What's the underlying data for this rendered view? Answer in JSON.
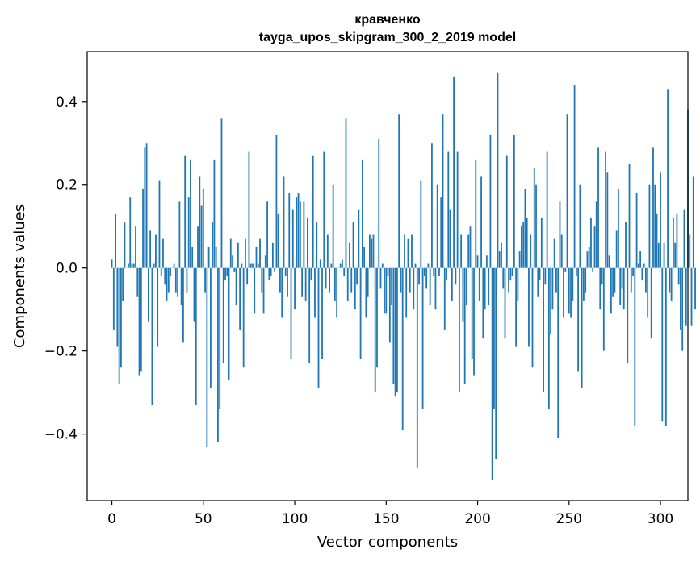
{
  "chart_data": {
    "type": "bar",
    "title": "кравченко",
    "subtitle": "tayga_upos_skipgram_300_2_2019 model",
    "xlabel": "Vector components",
    "ylabel": "Components values",
    "xlim": [
      -13.5,
      315
    ],
    "ylim": [
      -0.56,
      0.52
    ],
    "xticks": [
      0,
      50,
      100,
      150,
      200,
      250,
      300
    ],
    "xtick_labels": [
      "0",
      "50",
      "100",
      "150",
      "200",
      "250",
      "300"
    ],
    "yticks": [
      -0.4,
      -0.2,
      0.0,
      0.2,
      0.4
    ],
    "ytick_labels": [
      "−0.4",
      "−0.2",
      "0.0",
      "0.2",
      "0.4"
    ],
    "bar_color": "#1f77b4",
    "grid": false,
    "x_start": 0,
    "values": [
      0.02,
      -0.15,
      0.13,
      -0.19,
      -0.28,
      -0.24,
      -0.08,
      0.11,
      0.0,
      0.01,
      0.17,
      0.01,
      0.01,
      0.1,
      -0.07,
      -0.26,
      -0.25,
      0.19,
      0.29,
      0.3,
      -0.13,
      0.09,
      -0.33,
      0.01,
      0.08,
      -0.19,
      0.21,
      -0.02,
      0.07,
      -0.04,
      -0.08,
      -0.06,
      -0.02,
      0.0,
      0.01,
      -0.06,
      -0.07,
      0.16,
      -0.09,
      -0.18,
      0.27,
      -0.06,
      0.17,
      0.26,
      0.05,
      -0.13,
      -0.33,
      0.1,
      0.22,
      0.15,
      0.19,
      -0.06,
      -0.43,
      0.05,
      -0.29,
      0.11,
      0.26,
      0.05,
      -0.42,
      -0.34,
      0.36,
      -0.23,
      -0.03,
      -0.02,
      -0.27,
      0.07,
      0.03,
      -0.01,
      -0.09,
      0.06,
      -0.15,
      0.01,
      -0.24,
      0.07,
      -0.04,
      0.28,
      0.01,
      0.01,
      -0.11,
      0.05,
      0.01,
      0.07,
      -0.06,
      -0.11,
      0.03,
      0.16,
      -0.03,
      -0.02,
      0.06,
      -0.01,
      0.32,
      0.13,
      -0.06,
      -0.12,
      0.22,
      -0.02,
      -0.07,
      0.18,
      -0.22,
      0.14,
      -0.1,
      0.17,
      0.18,
      0.16,
      -0.07,
      0.16,
      -0.08,
      0.12,
      -0.23,
      -0.03,
      0.27,
      -0.12,
      0.11,
      -0.29,
      0.02,
      -0.22,
      0.28,
      -0.05,
      0.08,
      -0.06,
      0.01,
      0.2,
      -0.08,
      -0.12,
      0.0,
      0.01,
      0.02,
      -0.02,
      0.36,
      -0.08,
      0.06,
      -0.06,
      0.11,
      -0.1,
      -0.04,
      0.14,
      -0.22,
      0.26,
      0.05,
      -0.12,
      -0.07,
      0.08,
      0.07,
      0.08,
      -0.3,
      -0.24,
      0.31,
      -0.05,
      0.01,
      -0.11,
      -0.11,
      -0.02,
      -0.18,
      -0.09,
      -0.28,
      -0.31,
      -0.3,
      0.37,
      -0.06,
      -0.39,
      0.08,
      -0.12,
      0.07,
      -0.06,
      0.08,
      -0.1,
      0.01,
      -0.48,
      -0.04,
      0.21,
      -0.34,
      -0.02,
      -0.05,
      0.01,
      -0.09,
      0.3,
      -0.02,
      -0.1,
      0.2,
      -0.02,
      0.17,
      0.37,
      -0.15,
      -0.03,
      0.28,
      0.14,
      -0.08,
      0.46,
      -0.04,
      0.28,
      -0.3,
      0.08,
      -0.13,
      -0.28,
      -0.09,
      0.08,
      0.1,
      -0.22,
      -0.26,
      0.26,
      0.03,
      -0.08,
      0.22,
      -0.17,
      -0.1,
      0.03,
      -0.09,
      0.32,
      -0.51,
      -0.34,
      -0.46,
      0.47,
      0.04,
      0.06,
      -0.05,
      -0.17,
      0.27,
      -0.06,
      -0.03,
      -0.02,
      0.32,
      -0.19,
      -0.08,
      0.04,
      0.1,
      0.11,
      0.19,
      0.12,
      -0.19,
      0.08,
      -0.24,
      0.24,
      0.2,
      -0.07,
      -0.03,
      0.12,
      -0.3,
      -0.04,
      0.28,
      -0.34,
      -0.16,
      -0.1,
      0.07,
      -0.06,
      -0.41,
      0.16,
      0.08,
      -0.12,
      -0.01,
      0.37,
      -0.11,
      -0.12,
      -0.08,
      0.44,
      -0.02,
      -0.25,
      0.2,
      -0.29,
      -0.08,
      -0.06,
      0.04,
      0.05,
      0.12,
      -0.01,
      0.1,
      0.16,
      0.29,
      -0.1,
      -0.04,
      -0.2,
      0.28,
      0.23,
      0.03,
      -0.11,
      -0.07,
      -0.06,
      0.09,
      0.19,
      -0.09,
      -0.05,
      -0.1,
      0.11,
      -0.23,
      0.25,
      -0.06,
      -0.02,
      -0.38,
      0.18,
      0.01,
      0.04,
      -0.03,
      0.01,
      -0.06,
      -0.12,
      0.2,
      -0.17,
      0.29,
      0.2,
      0.13,
      0.06,
      0.23,
      -0.37,
      0.06,
      -0.38,
      0.43,
      -0.06,
      -0.08,
      0.12,
      0.06,
      0.13,
      -0.04,
      -0.15,
      -0.2,
      0.14,
      -0.14,
      0.38,
      0.08,
      -0.14,
      0.22,
      -0.1
    ]
  }
}
